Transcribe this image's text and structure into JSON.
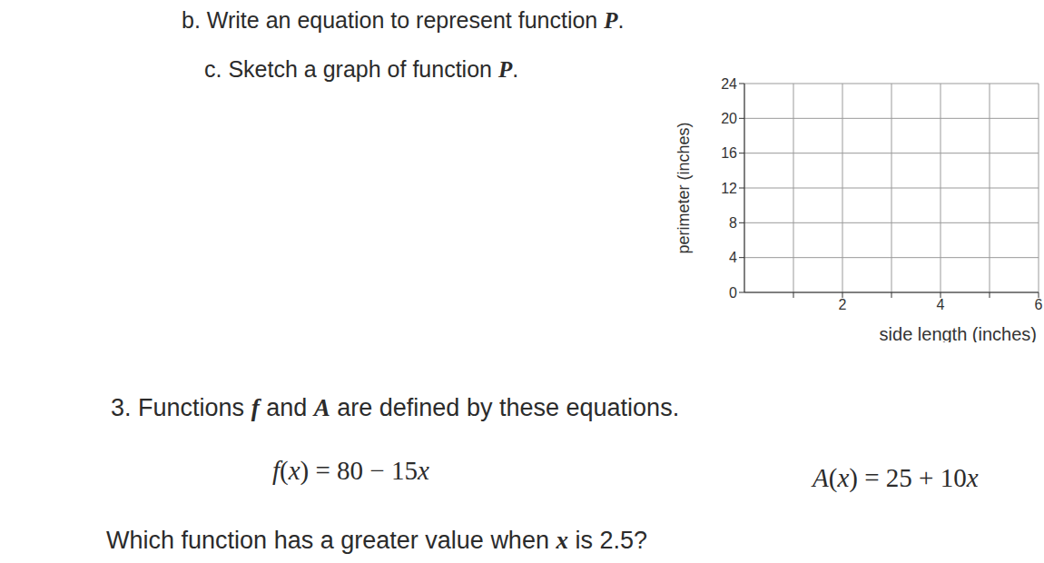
{
  "part_b": {
    "text": "b. Write an equation to represent function P."
  },
  "part_c": {
    "text": "c. Sketch a graph of function P."
  },
  "chart_data": {
    "type": "line",
    "x_label": "side length (inches)",
    "y_label": "perimeter (inches)",
    "xlim": [
      0,
      6
    ],
    "ylim": [
      0,
      24
    ],
    "xticks": [
      2,
      4,
      6
    ],
    "x_minor_ticks": [
      1,
      3,
      5
    ],
    "yticks": [
      0,
      4,
      8,
      12,
      16,
      20,
      24
    ],
    "grid": true,
    "series": []
  },
  "question_3": {
    "text": "3. Functions f and A are defined by these equations.",
    "equations": [
      "f(x) = 80 − 15x",
      "A(x) = 25 + 10x"
    ],
    "question": "Which function has a greater value when x is 2.5?"
  }
}
